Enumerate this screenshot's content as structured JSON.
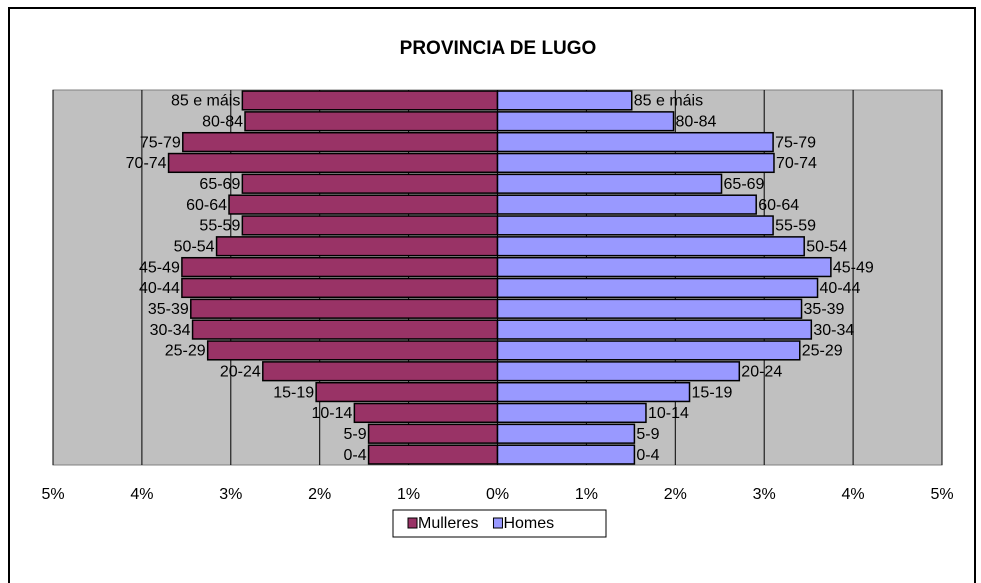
{
  "chart_data": {
    "type": "pyramid",
    "title": "PROVINCIA DE LUGO",
    "categories": [
      "85 e máis",
      "80-84",
      "75-79",
      "70-74",
      "65-69",
      "60-64",
      "55-59",
      "50-54",
      "45-49",
      "40-44",
      "35-39",
      "30-34",
      "25-29",
      "20-24",
      "15-19",
      "10-14",
      "5-9",
      "0-4"
    ],
    "series": [
      {
        "name": "Mulleres",
        "color": "#993366",
        "side": "left",
        "values": [
          2.87,
          2.84,
          3.54,
          3.7,
          2.87,
          3.02,
          2.87,
          3.16,
          3.55,
          3.55,
          3.45,
          3.43,
          3.26,
          2.64,
          2.04,
          1.61,
          1.45,
          1.45
        ]
      },
      {
        "name": "Homes",
        "color": "#9999ff",
        "side": "right",
        "values": [
          1.51,
          1.98,
          3.1,
          3.11,
          2.52,
          2.91,
          3.1,
          3.45,
          3.75,
          3.6,
          3.42,
          3.53,
          3.4,
          2.72,
          2.16,
          1.67,
          1.54,
          1.54
        ]
      }
    ],
    "xlim": [
      -5,
      5
    ],
    "xticks": [
      {
        "value": -5,
        "label": "5%"
      },
      {
        "value": -4,
        "label": "4%"
      },
      {
        "value": -3,
        "label": "3%"
      },
      {
        "value": -2,
        "label": "2%"
      },
      {
        "value": -1,
        "label": "1%"
      },
      {
        "value": 0,
        "label": "0%"
      },
      {
        "value": 1,
        "label": "1%"
      },
      {
        "value": 2,
        "label": "2%"
      },
      {
        "value": 3,
        "label": "3%"
      },
      {
        "value": 4,
        "label": "4%"
      },
      {
        "value": 5,
        "label": "5%"
      }
    ],
    "grid": true,
    "legend": "bottom"
  }
}
